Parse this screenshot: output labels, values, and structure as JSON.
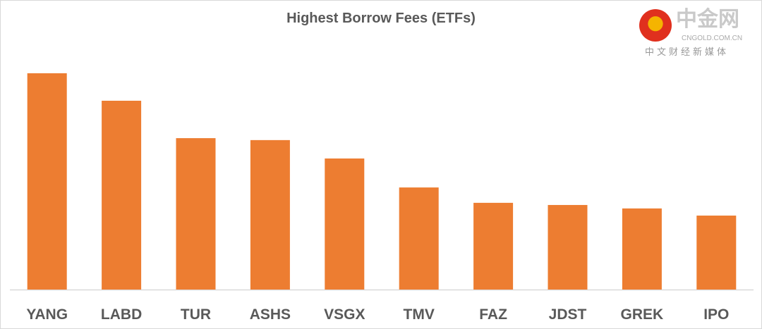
{
  "chart_data": {
    "type": "bar",
    "title": "Highest Borrow Fees (ETFs)",
    "categories": [
      "YANG",
      "LABD",
      "TUR",
      "ASHS",
      "VSGX",
      "TMV",
      "FAZ",
      "JDST",
      "GREK",
      "IPO"
    ],
    "values": [
      100,
      87.3,
      70.0,
      69.1,
      60.6,
      47.2,
      40.1,
      39.1,
      37.5,
      34.2
    ],
    "value_units": "relative (no value axis shown)",
    "ylim": [
      0,
      100
    ],
    "grid": false,
    "legend": "none",
    "bar_color": "#ED7D31"
  },
  "watermark": {
    "name": "中金网",
    "domain": "CNGOLD.COM.CN",
    "tagline": "中文财经新媒体"
  }
}
